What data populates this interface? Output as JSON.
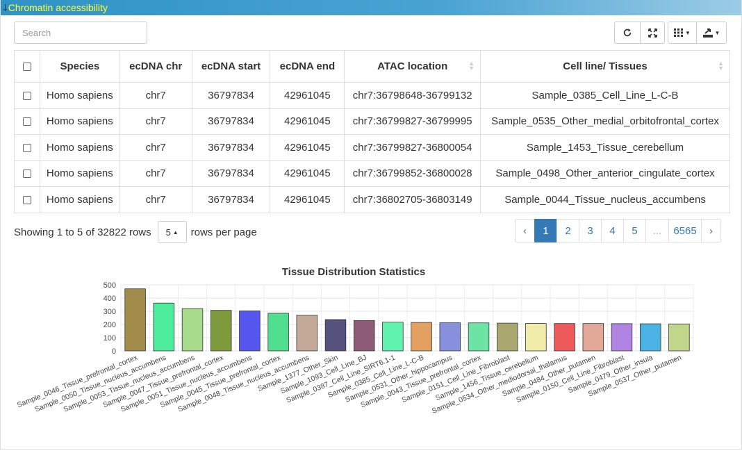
{
  "panel": {
    "title": "Chromatin accessibility"
  },
  "search": {
    "placeholder": "Search"
  },
  "toolbar": {
    "refresh_icon": "refresh-icon",
    "fullscreen_icon": "fullscreen-icon",
    "columns_icon": "columns-grid-icon",
    "export_icon": "export-icon"
  },
  "table": {
    "headers": [
      "Species",
      "ecDNA chr",
      "ecDNA start",
      "ecDNA end",
      "ATAC location",
      "Cell line/ Tissues"
    ],
    "rows": [
      [
        "Homo sapiens",
        "chr7",
        "36797834",
        "42961045",
        "chr7:36798648-36799132",
        "Sample_0385_Cell_Line_L-C-B"
      ],
      [
        "Homo sapiens",
        "chr7",
        "36797834",
        "42961045",
        "chr7:36799827-36799995",
        "Sample_0535_Other_medial_orbitofrontal_cortex"
      ],
      [
        "Homo sapiens",
        "chr7",
        "36797834",
        "42961045",
        "chr7:36799827-36800054",
        "Sample_1453_Tissue_cerebellum"
      ],
      [
        "Homo sapiens",
        "chr7",
        "36797834",
        "42961045",
        "chr7:36799852-36800028",
        "Sample_0498_Other_anterior_cingulate_cortex"
      ],
      [
        "Homo sapiens",
        "chr7",
        "36797834",
        "42961045",
        "chr7:36802705-36803149",
        "Sample_0044_Tissue_nucleus_accumbens"
      ]
    ]
  },
  "pagination": {
    "showing": "Showing 1 to 5 of 32822 rows",
    "page_size": "5",
    "rows_per_page": "rows per page",
    "prev": "‹",
    "pages": [
      "1",
      "2",
      "3",
      "4",
      "5",
      "...",
      "6565"
    ],
    "next": "›",
    "active_page": "1"
  },
  "chart_data": {
    "type": "bar",
    "title": "Tissue Distribution Statistics",
    "xlabel": "",
    "ylabel": "",
    "ylim": [
      0,
      500
    ],
    "yticks": [
      0,
      100,
      200,
      300,
      400,
      500
    ],
    "grid": true,
    "categories": [
      "Sample_0046_Tissue_prefrontal_cortex",
      "Sample_0050_Tissue_nucleus_accumbens",
      "Sample_0053_Tissue_nucleus_accumbens",
      "Sample_0047_Tissue_prefrontal_cortex",
      "Sample_0051_Tissue_nucleus_accumbens",
      "Sample_0045_Tissue_prefrontal_cortex",
      "Sample_0048_Tissue_nucleus_accumbens",
      "Sample_1377_Other_Skin",
      "Sample_1093_Cell_Line_BJ",
      "Sample_0387_Cell_Line_SIRT6.1-1",
      "Sample_0385_Cell_Line_L-C-B",
      "Sample_0531_Other_hippocampus",
      "Sample_0043_Tissue_prefrontal_cortex",
      "Sample_0151_Cell_Line_Fibroblast",
      "Sample_1456_Tissue_cerebellum",
      "Sample_0534_Other_mediodorsal_thalamus",
      "Sample_0484_Other_putamen",
      "Sample_0150_Cell_Line_Fibroblast",
      "Sample_0479_Other_insula",
      "Sample_0537_Other_putamen"
    ],
    "values": [
      470,
      362,
      320,
      307,
      303,
      285,
      270,
      237,
      230,
      218,
      215,
      213,
      212,
      210,
      208,
      207,
      207,
      206,
      205,
      204
    ],
    "colors": [
      "#a28c4c",
      "#4ded9c",
      "#a8dc8c",
      "#7d9a3c",
      "#5656ee",
      "#4fdd8e",
      "#c4a898",
      "#55527e",
      "#8d5a77",
      "#62f2b0",
      "#e4a060",
      "#8690dc",
      "#6ce4a4",
      "#aaa870",
      "#f2ecaa",
      "#ee5a5a",
      "#e2a898",
      "#b184e4",
      "#4cb4e4",
      "#c0d68a"
    ]
  }
}
